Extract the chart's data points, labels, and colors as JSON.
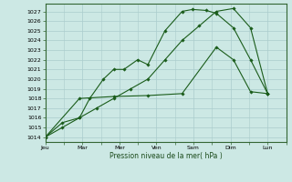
{
  "background_color": "#cce8e4",
  "grid_color": "#aacccc",
  "line_color": "#1a5c1a",
  "xlabel": "Pression niveau de la mer( hPa )",
  "xtick_labels": [
    "Jeu",
    "Mar",
    "Mer",
    "Ven",
    "Sam",
    "Dim",
    "Lun"
  ],
  "ylim": [
    1013.5,
    1027.8
  ],
  "yticks": [
    1014,
    1015,
    1016,
    1017,
    1018,
    1019,
    1020,
    1021,
    1022,
    1023,
    1024,
    1025,
    1026,
    1027
  ],
  "series": [
    {
      "x": [
        0,
        0.5,
        1.0,
        1.3,
        1.7,
        2.0,
        2.3,
        2.7,
        3.0,
        3.5,
        4.0,
        4.3,
        4.7,
        5.0,
        5.5,
        6.0,
        6.5
      ],
      "y": [
        1014,
        1015,
        1016,
        1018,
        1020,
        1021,
        1021,
        1022,
        1021.5,
        1025,
        1027,
        1027.2,
        1027.1,
        1026.8,
        1025.3,
        1022,
        1018.5
      ]
    },
    {
      "x": [
        0,
        0.5,
        1.0,
        1.5,
        2.0,
        2.5,
        3.0,
        3.5,
        4.0,
        4.5,
        5.0,
        5.5,
        6.0,
        6.5
      ],
      "y": [
        1014,
        1015.5,
        1016,
        1017,
        1018,
        1019,
        1020,
        1022,
        1024,
        1025.5,
        1027.0,
        1027.3,
        1025.3,
        1018.5
      ]
    },
    {
      "x": [
        0,
        1.0,
        2.0,
        3.0,
        4.0,
        5.0,
        5.5,
        6.0,
        6.5
      ],
      "y": [
        1014,
        1018,
        1018.2,
        1018.3,
        1018.5,
        1023.3,
        1022,
        1018.7,
        1018.5
      ]
    }
  ]
}
